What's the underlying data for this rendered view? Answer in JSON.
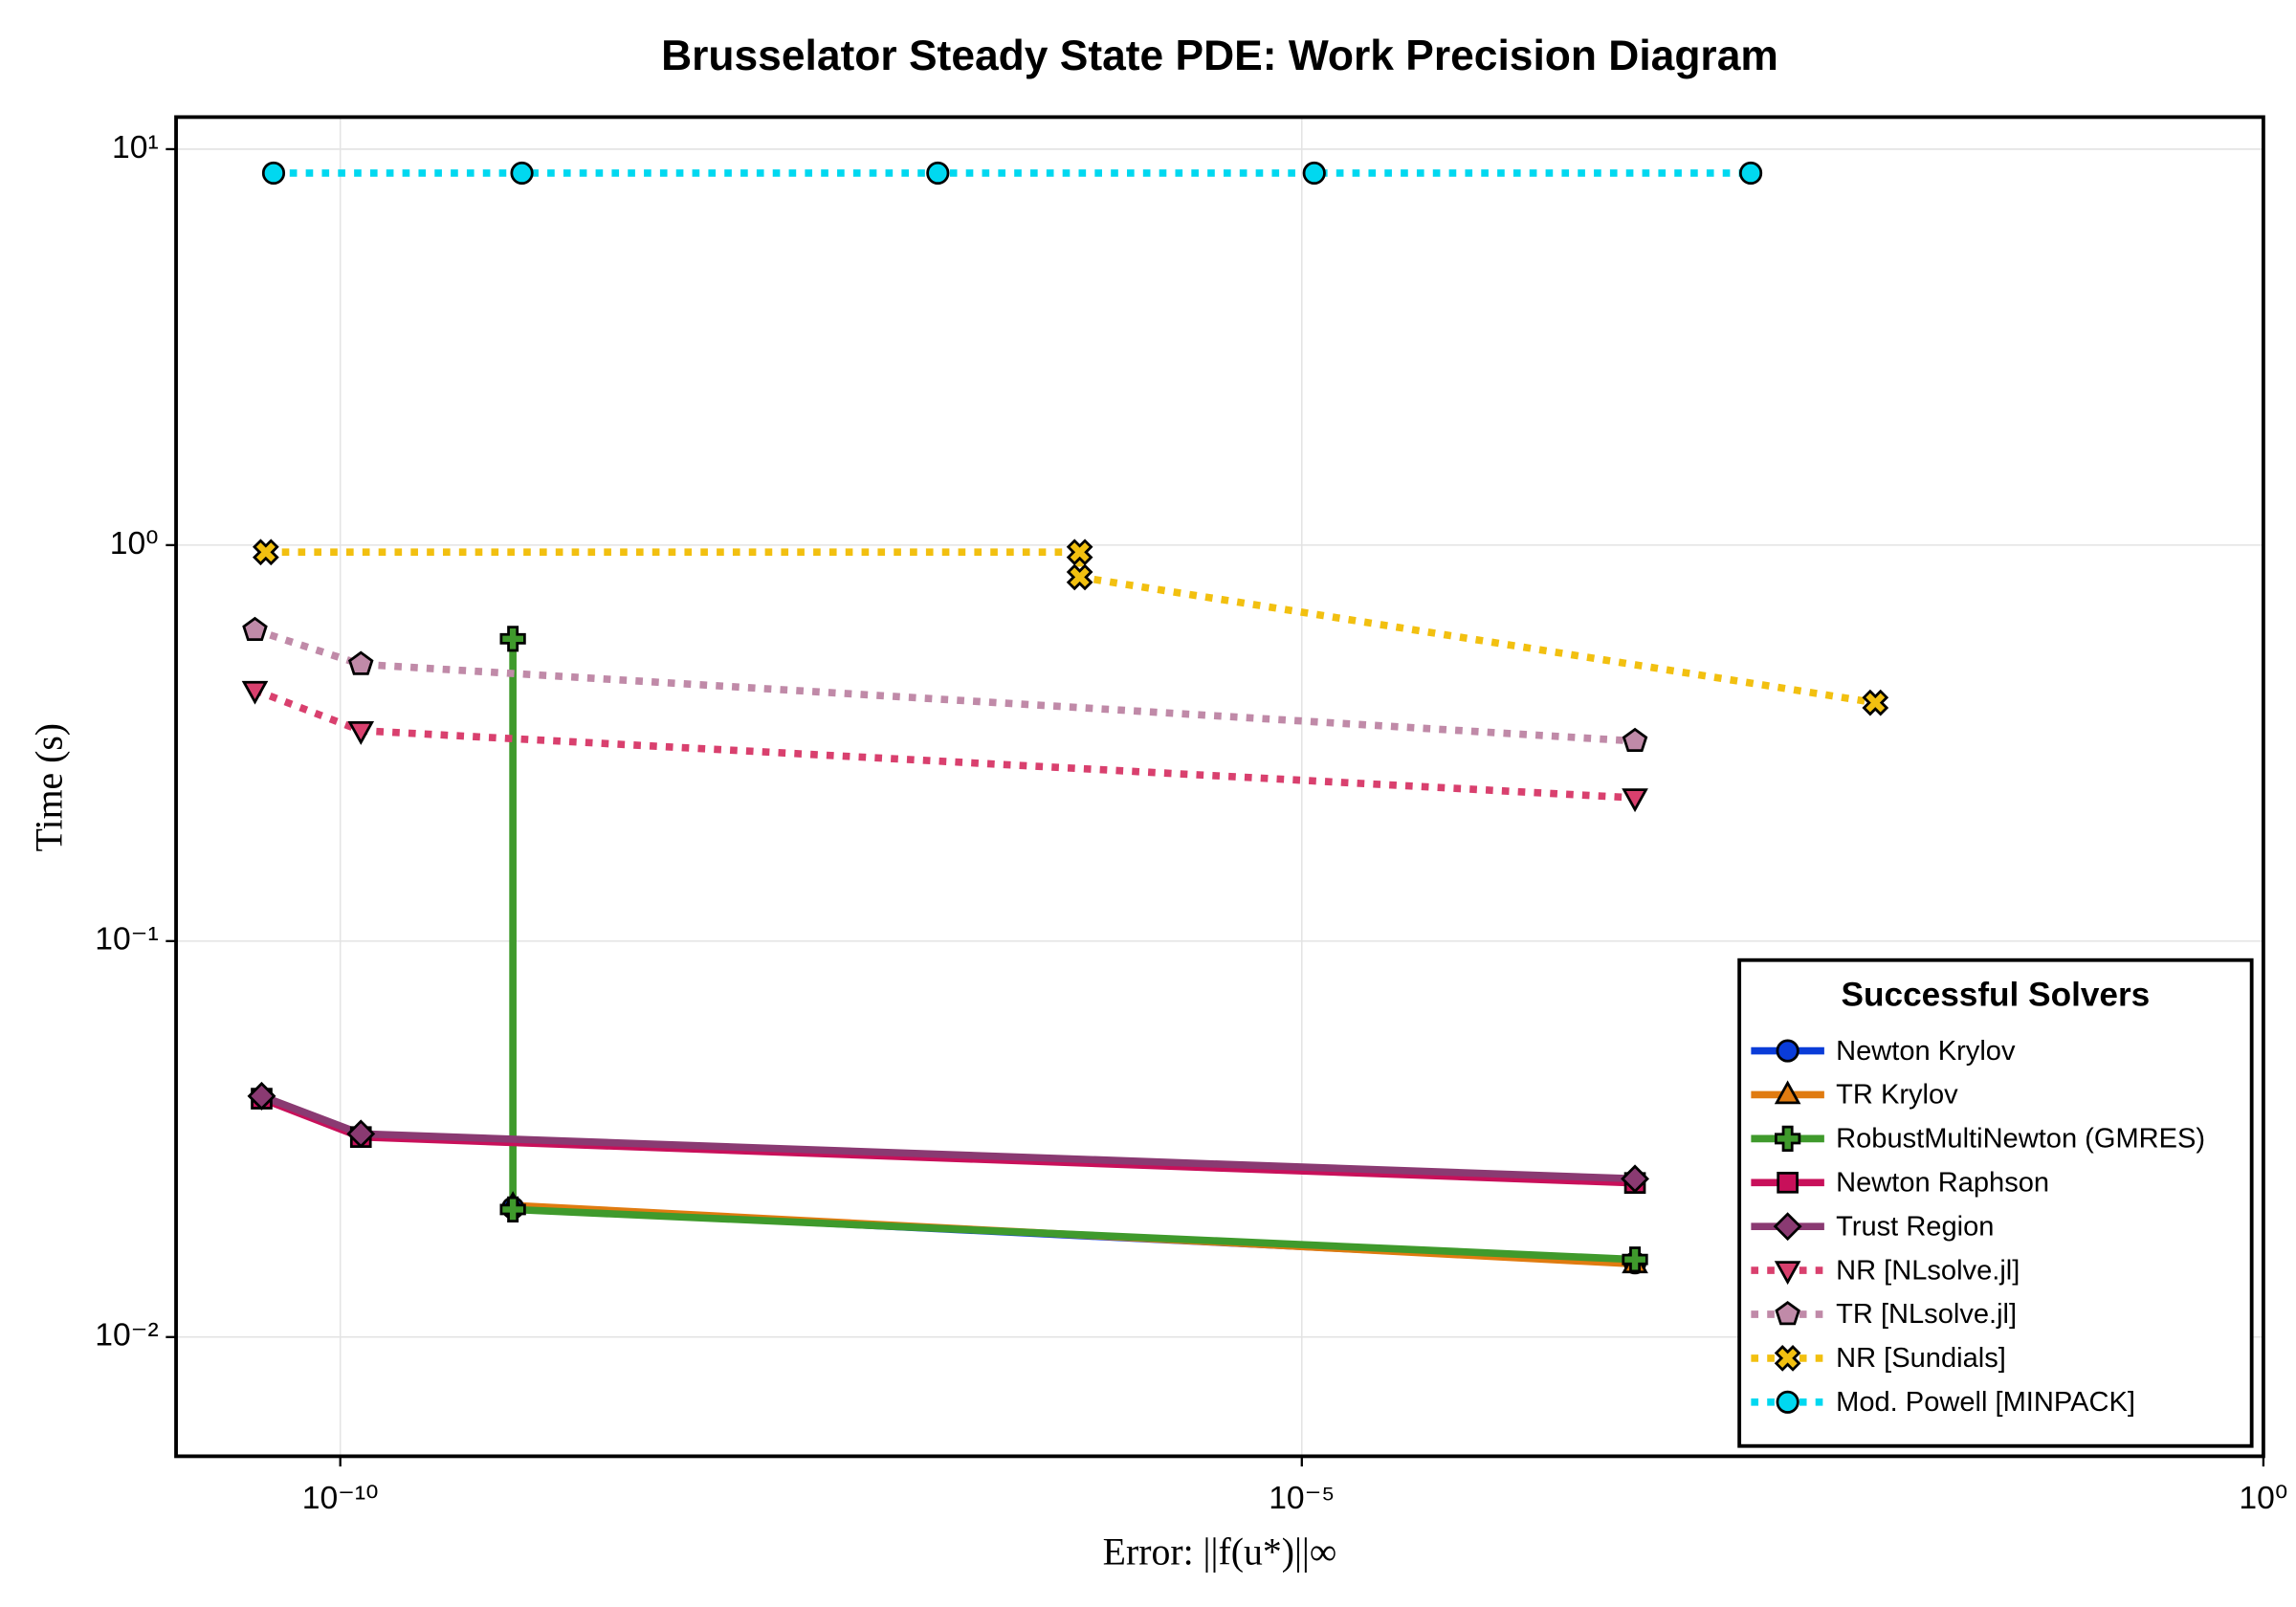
{
  "chart_data": {
    "type": "line",
    "title": "Brusselator Steady State PDE: Work Precision Diagram",
    "x_label": "Error: ||f(u*)||∞",
    "y_label": "Time (s)",
    "x_scale": "log",
    "y_scale": "log",
    "grid": true,
    "xlim": [
      1.4e-11,
      1
    ],
    "ylim": [
      0.005,
      12.05
    ],
    "xticks": [
      {
        "value": 1e-10,
        "label": "10⁻¹⁰"
      },
      {
        "value": 1e-05,
        "label": "10⁻⁵"
      },
      {
        "value": 1,
        "label": "10⁰"
      }
    ],
    "yticks": [
      {
        "value": 0.01,
        "label": "10⁻²"
      },
      {
        "value": 0.1,
        "label": "10⁻¹"
      },
      {
        "value": 1,
        "label": "10⁰"
      },
      {
        "value": 10,
        "label": "10¹"
      }
    ],
    "legend": {
      "title": "Successful Solvers",
      "position": "bottom-right"
    },
    "series": [
      {
        "name": "Newton Krylov",
        "color": "#0a3cd8",
        "marker": "circle",
        "dotted": false,
        "x": [
          7.9e-10,
          0.00054
        ],
        "values": [
          0.0212,
          0.0154
        ]
      },
      {
        "name": "TR Krylov",
        "color": "#e07b10",
        "marker": "triangle",
        "dotted": false,
        "x": [
          7.9e-10,
          0.00054
        ],
        "values": [
          0.0215,
          0.0153
        ]
      },
      {
        "name": "RobustMultiNewton (GMRES)",
        "color": "#3f9a2c",
        "marker": "plus",
        "dotted": false,
        "x": [
          7.9e-10,
          7.9e-10,
          0.00054
        ],
        "values": [
          0.58,
          0.021,
          0.0157
        ]
      },
      {
        "name": "Newton Raphson",
        "color": "#c8105a",
        "marker": "square",
        "dotted": false,
        "x": [
          3.9e-11,
          1.28e-10,
          0.00054
        ],
        "values": [
          0.04,
          0.032,
          0.0245
        ]
      },
      {
        "name": "Trust Region",
        "color": "#8a3a72",
        "marker": "diamond",
        "dotted": false,
        "x": [
          3.9e-11,
          1.28e-10,
          0.00054
        ],
        "values": [
          0.0406,
          0.0326,
          0.0251
        ]
      },
      {
        "name": "NR [NLsolve.jl]",
        "color": "#d9406e",
        "marker": "triangle-down",
        "dotted": true,
        "x": [
          3.6e-11,
          1.28e-10,
          0.00054
        ],
        "values": [
          0.43,
          0.34,
          0.23
        ]
      },
      {
        "name": "TR [NLsolve.jl]",
        "color": "#c08aa8",
        "marker": "pentagon",
        "dotted": true,
        "x": [
          3.6e-11,
          1.28e-10,
          0.00054
        ],
        "values": [
          0.61,
          0.5,
          0.32
        ]
      },
      {
        "name": "NR [Sundials]",
        "color": "#f2c010",
        "marker": "x-cross",
        "dotted": true,
        "x": [
          4.1e-11,
          7e-07,
          7e-07,
          0.0096
        ],
        "values": [
          0.96,
          0.96,
          0.83,
          0.4
        ]
      },
      {
        "name": "Mod. Powell [MINPACK]",
        "color": "#00d8f0",
        "marker": "circle",
        "dotted": true,
        "x": [
          4.5e-11,
          8.8e-10,
          1.28e-07,
          1.16e-05,
          0.00216
        ],
        "values": [
          8.7,
          8.7,
          8.7,
          8.7,
          8.7
        ]
      }
    ]
  }
}
